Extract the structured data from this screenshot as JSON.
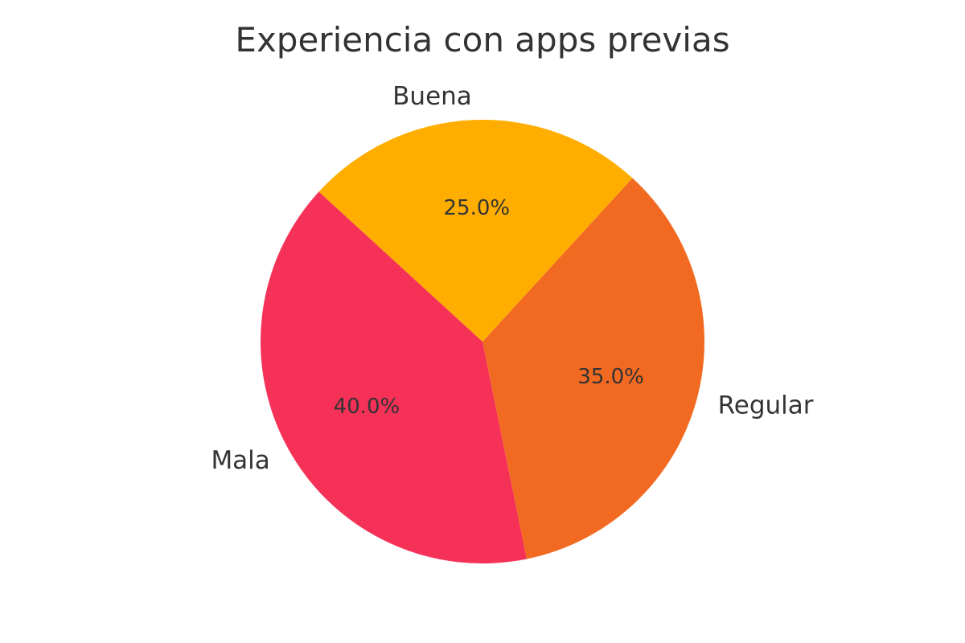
{
  "chart_data": {
    "type": "pie",
    "title": "Experiencia con apps previas",
    "categories": [
      "Mala",
      "Regular",
      "Buena"
    ],
    "values": [
      40.0,
      35.0,
      25.0
    ],
    "labels": [
      "40.0%",
      "35.0%",
      "25.0%"
    ],
    "colors": [
      "#F53158",
      "#F26A21",
      "#FFAE00"
    ],
    "legend": "none"
  }
}
